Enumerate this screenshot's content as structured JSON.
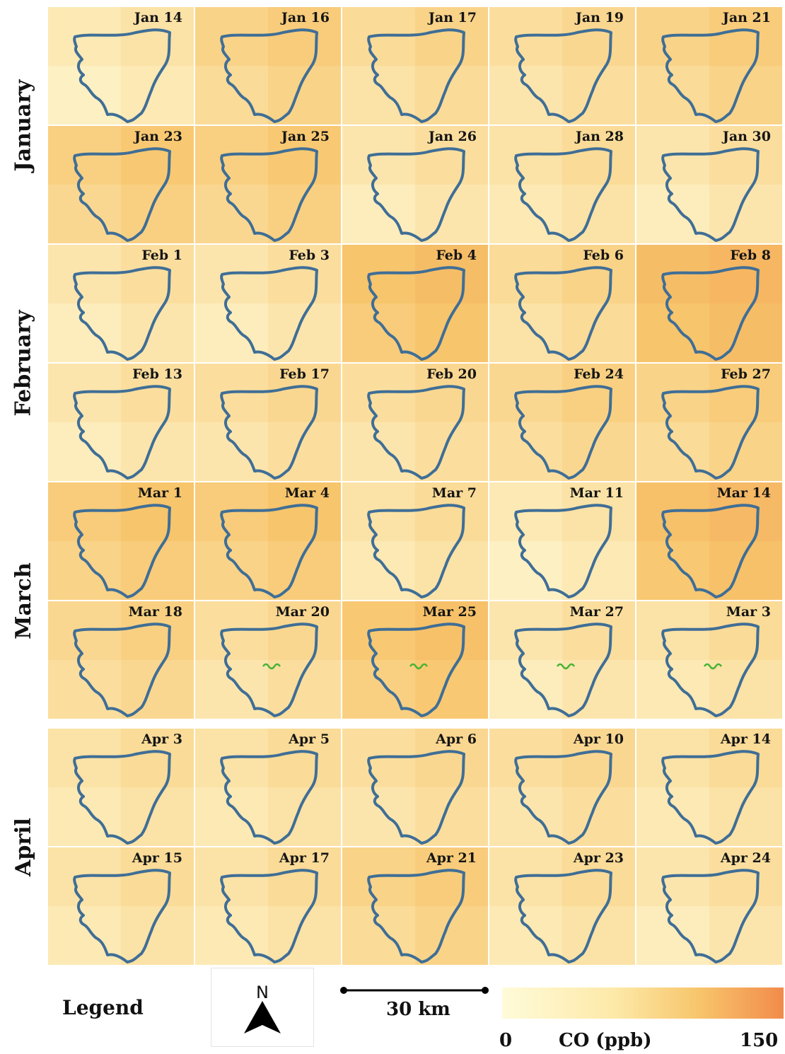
{
  "months": [
    {
      "label": "January",
      "rows": [
        0,
        1
      ]
    },
    {
      "label": "February",
      "rows": [
        2,
        3
      ]
    },
    {
      "label": "March",
      "rows": [
        4,
        5
      ]
    },
    {
      "label": "April",
      "rows": [
        6,
        7
      ]
    }
  ],
  "panels": [
    [
      {
        "date": "Jan 14",
        "co": 25
      },
      {
        "date": "Jan 16",
        "co": 55
      },
      {
        "date": "Jan 17",
        "co": 45
      },
      {
        "date": "Jan 19",
        "co": 40
      },
      {
        "date": "Jan 21",
        "co": 55
      }
    ],
    [
      {
        "date": "Jan 23",
        "co": 60
      },
      {
        "date": "Jan 25",
        "co": 60
      },
      {
        "date": "Jan 26",
        "co": 30
      },
      {
        "date": "Jan 28",
        "co": 35
      },
      {
        "date": "Jan 30",
        "co": 30
      }
    ],
    [
      {
        "date": "Feb 1",
        "co": 30
      },
      {
        "date": "Feb 3",
        "co": 30
      },
      {
        "date": "Feb 4",
        "co": 75
      },
      {
        "date": "Feb 6",
        "co": 45
      },
      {
        "date": "Feb 8",
        "co": 85
      }
    ],
    [
      {
        "date": "Feb 13",
        "co": 30
      },
      {
        "date": "Feb 17",
        "co": 40
      },
      {
        "date": "Feb 20",
        "co": 40
      },
      {
        "date": "Feb 24",
        "co": 50
      },
      {
        "date": "Feb 27",
        "co": 55
      }
    ],
    [
      {
        "date": "Mar 1",
        "co": 65
      },
      {
        "date": "Mar 4",
        "co": 65
      },
      {
        "date": "Mar 7",
        "co": 35
      },
      {
        "date": "Mar 11",
        "co": 25
      },
      {
        "date": "Mar 14",
        "co": 80
      }
    ],
    [
      {
        "date": "Mar 18",
        "co": 50
      },
      {
        "date": "Mar 20",
        "co": 40
      },
      {
        "date": "Mar 25",
        "co": 70
      },
      {
        "date": "Mar 27",
        "co": 30
      },
      {
        "date": "Mar 3",
        "co": 35
      }
    ],
    [
      {
        "date": "Apr 3",
        "co": 35
      },
      {
        "date": "Apr 5",
        "co": 35
      },
      {
        "date": "Apr 6",
        "co": 40
      },
      {
        "date": "Apr 10",
        "co": 40
      },
      {
        "date": "Apr 14",
        "co": 35
      }
    ],
    [
      {
        "date": "Apr 15",
        "co": 35
      },
      {
        "date": "Apr 17",
        "co": 35
      },
      {
        "date": "Apr 21",
        "co": 55
      },
      {
        "date": "Apr 23",
        "co": 35
      },
      {
        "date": "Apr 24",
        "co": 30
      }
    ]
  ],
  "stream_panels": [
    "Mar 20",
    "Mar 25",
    "Mar 27",
    "Mar 3"
  ],
  "legend": {
    "title": "Legend",
    "north": "N",
    "scale": "30 km",
    "colorbar_min": "0",
    "colorbar_label": "CO (ppb)",
    "colorbar_max": "150"
  },
  "colors": {
    "boundary": "#3f6e96",
    "stream": "#47b337",
    "scale_low": "#fffbd9",
    "scale_mid": "#f7c56b",
    "scale_high": "#f28b4b"
  }
}
